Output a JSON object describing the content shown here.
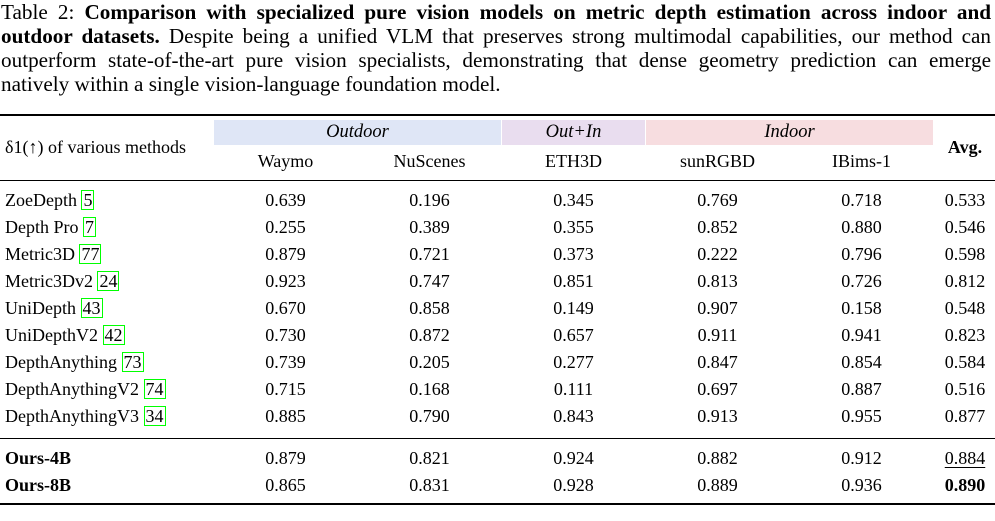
{
  "caption": {
    "label": "Table 2:",
    "bold_title": "Comparison with specialized pure vision models on metric depth estimation across indoor and outdoor datasets.",
    "body": "Despite being a unified VLM that preserves strong multimodal capabilities, our method can outperform state-of-the-art pure vision specialists, demonstrating that dense geometry prediction can emerge natively within a single vision-language foundation model."
  },
  "header": {
    "row_label": "δ1(↑) of various methods",
    "groups": [
      {
        "label": "Outdoor",
        "color": "#dfe6f6"
      },
      {
        "label": "Out+In",
        "color": "#e9ddef"
      },
      {
        "label": "Indoor",
        "color": "#f7dde0"
      }
    ],
    "columns": [
      "Waymo",
      "NuScenes",
      "ETH3D",
      "sunRGBD",
      "IBims-1"
    ],
    "avg_label": "Avg."
  },
  "rows": [
    {
      "name": "ZoeDepth",
      "cite": "5",
      "values": [
        "0.639",
        "0.196",
        "0.345",
        "0.769",
        "0.718",
        "0.533"
      ]
    },
    {
      "name": "Depth Pro",
      "cite": "7",
      "values": [
        "0.255",
        "0.389",
        "0.355",
        "0.852",
        "0.880",
        "0.546"
      ]
    },
    {
      "name": "Metric3D",
      "cite": "77",
      "values": [
        "0.879",
        "0.721",
        "0.373",
        "0.222",
        "0.796",
        "0.598"
      ]
    },
    {
      "name": "Metric3Dv2",
      "cite": "24",
      "values": [
        "0.923",
        "0.747",
        "0.851",
        "0.813",
        "0.726",
        "0.812"
      ]
    },
    {
      "name": "UniDepth",
      "cite": "43",
      "values": [
        "0.670",
        "0.858",
        "0.149",
        "0.907",
        "0.158",
        "0.548"
      ]
    },
    {
      "name": "UniDepthV2",
      "cite": "42",
      "values": [
        "0.730",
        "0.872",
        "0.657",
        "0.911",
        "0.941",
        "0.823"
      ]
    },
    {
      "name": "DepthAnything",
      "cite": "73",
      "values": [
        "0.739",
        "0.205",
        "0.277",
        "0.847",
        "0.854",
        "0.584"
      ]
    },
    {
      "name": "DepthAnythingV2",
      "cite": "74",
      "values": [
        "0.715",
        "0.168",
        "0.111",
        "0.697",
        "0.887",
        "0.516"
      ]
    },
    {
      "name": "DepthAnythingV3",
      "cite": "34",
      "values": [
        "0.885",
        "0.790",
        "0.843",
        "0.913",
        "0.955",
        "0.877"
      ]
    }
  ],
  "ours": [
    {
      "name": "Ours-4B",
      "values": [
        "0.879",
        "0.821",
        "0.924",
        "0.882",
        "0.912",
        "0.884"
      ],
      "avg_style": "underline"
    },
    {
      "name": "Ours-8B",
      "values": [
        "0.865",
        "0.831",
        "0.928",
        "0.889",
        "0.936",
        "0.890"
      ],
      "avg_style": "bold"
    }
  ]
}
